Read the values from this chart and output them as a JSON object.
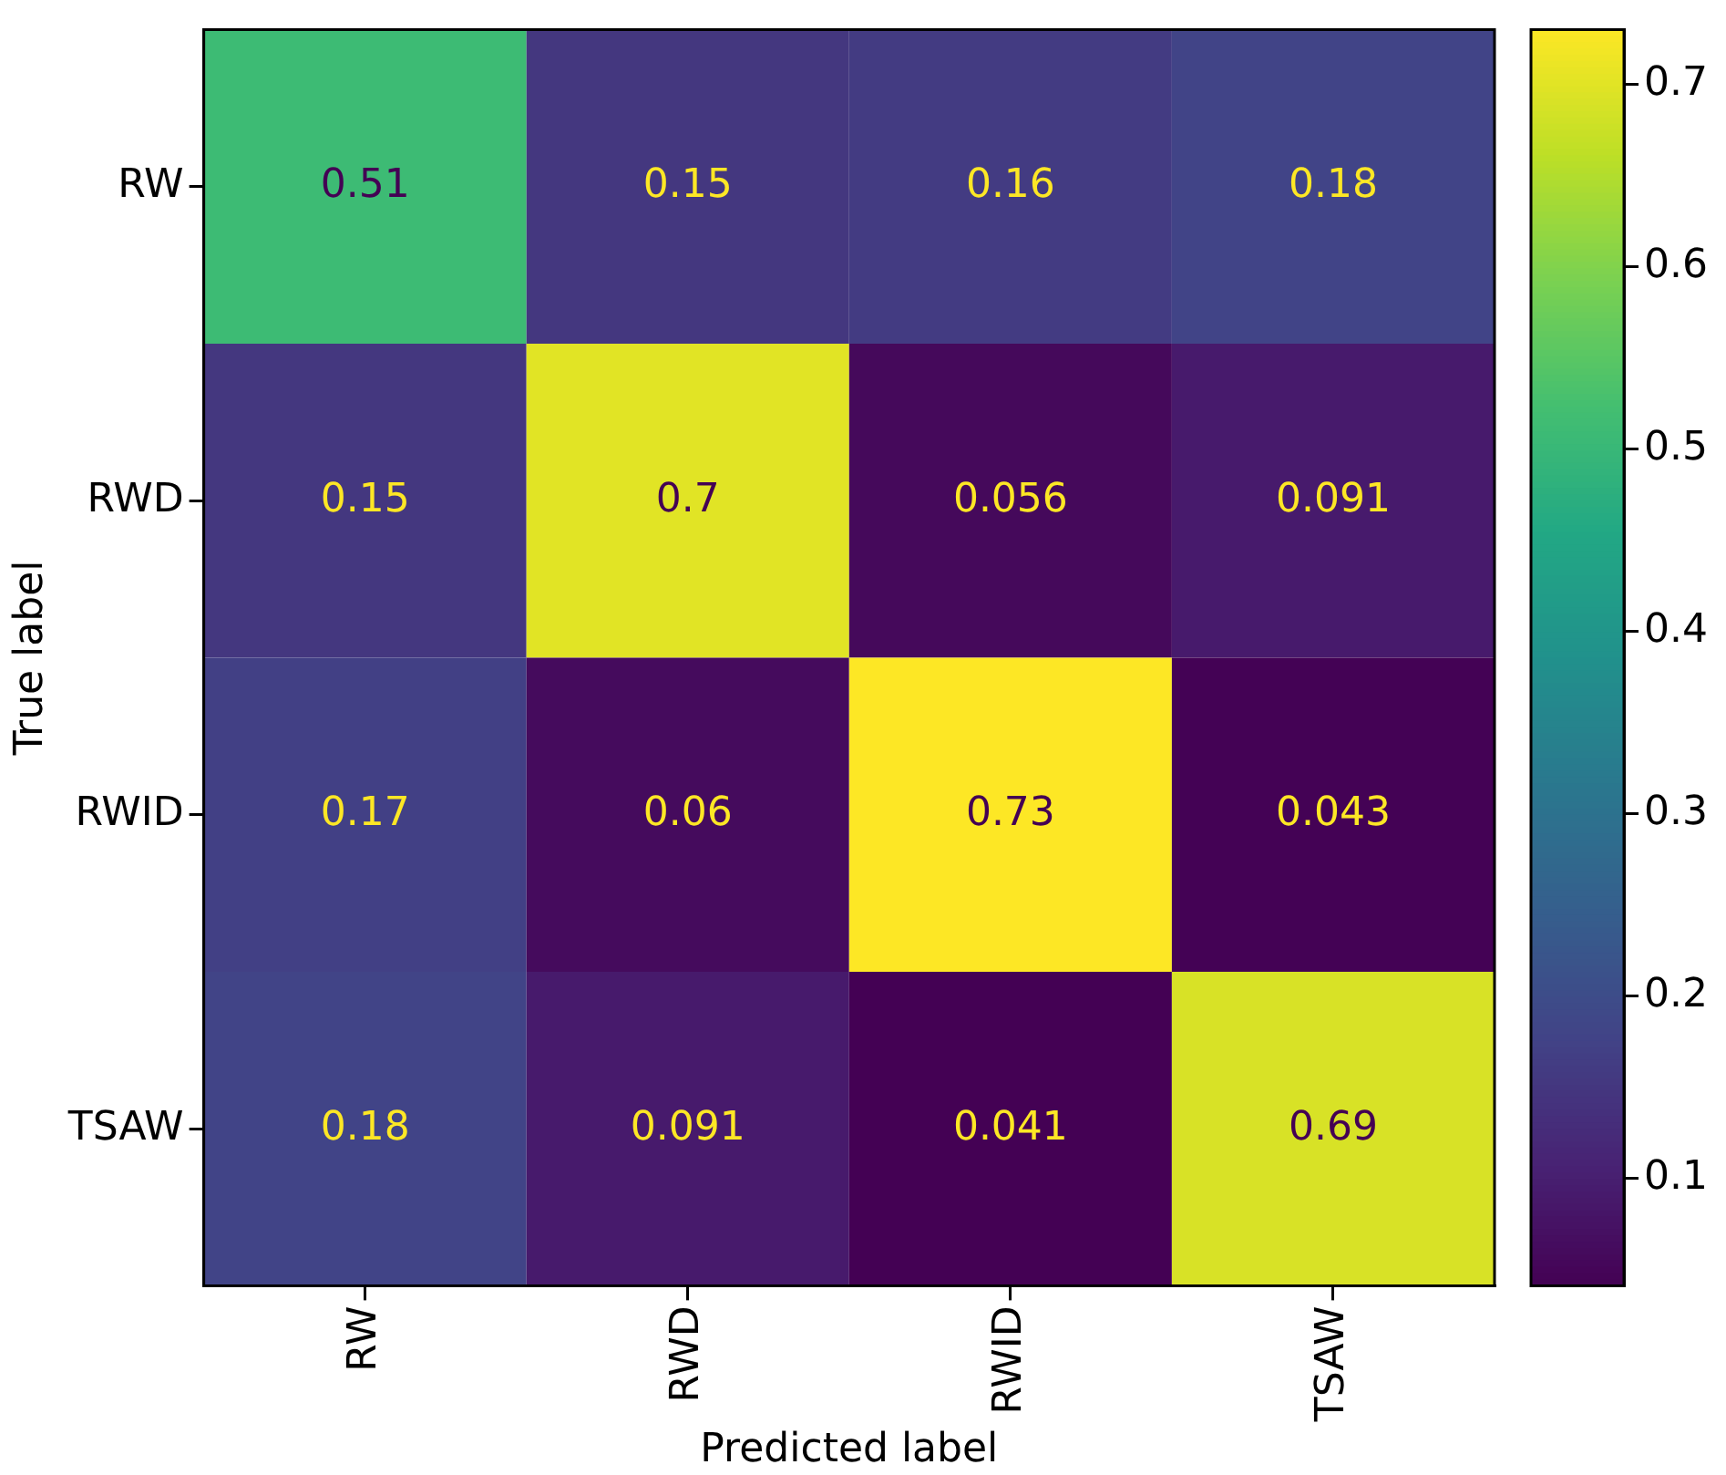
{
  "chart_data": {
    "type": "heatmap",
    "xlabel": "Predicted label",
    "ylabel": "True label",
    "categories": [
      "RW",
      "RWD",
      "RWID",
      "TSAW"
    ],
    "y_categories": [
      "RW",
      "RWD",
      "RWID",
      "TSAW"
    ],
    "cells": [
      [
        0.51,
        0.15,
        0.16,
        0.18
      ],
      [
        0.15,
        0.7,
        0.056,
        0.091
      ],
      [
        0.17,
        0.06,
        0.73,
        0.043
      ],
      [
        0.18,
        0.091,
        0.041,
        0.69
      ]
    ],
    "clim": [
      0.041,
      0.73
    ],
    "cticks": [
      0.1,
      0.2,
      0.3,
      0.4,
      0.5,
      0.6,
      0.7
    ],
    "data_labels": true
  }
}
